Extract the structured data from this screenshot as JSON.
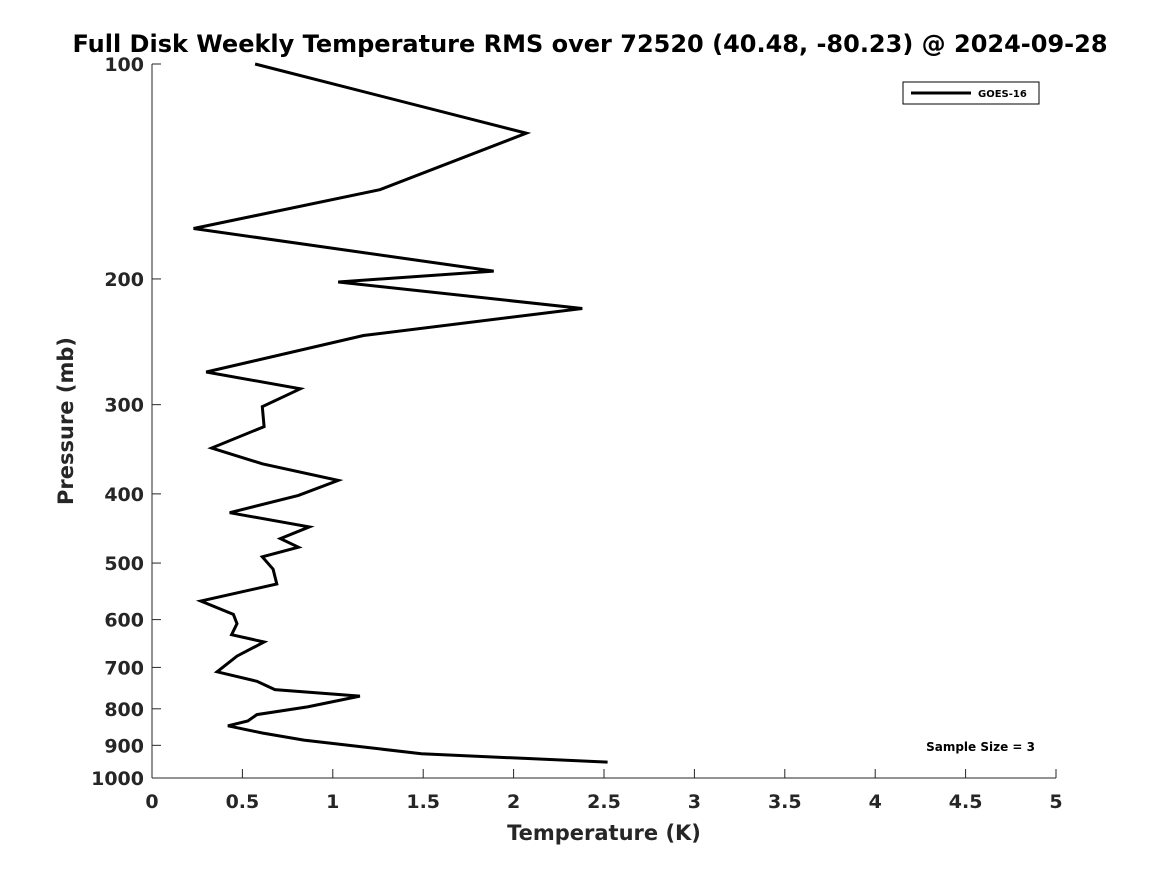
{
  "chart_data": {
    "type": "line",
    "title": "Full Disk Weekly Temperature RMS over 72520 (40.48, -80.23) @ 2024-09-28",
    "xlabel": "Temperature (K)",
    "ylabel": "Pressure (mb)",
    "xlim": [
      0,
      5
    ],
    "ylim": [
      100,
      1000
    ],
    "y_scale": "log",
    "y_reversed": true,
    "grid": false,
    "legend_position": "top-right",
    "x_ticks": [
      "0",
      "0.5",
      "1",
      "1.5",
      "2",
      "2.5",
      "3",
      "3.5",
      "4",
      "4.5",
      "5"
    ],
    "y_ticks": [
      "100",
      "200",
      "300",
      "400",
      "500",
      "600",
      "700",
      "800",
      "900",
      "1000"
    ],
    "series": [
      {
        "name": "GOES-16",
        "color": "#000000",
        "points": [
          [
            0.57,
            100
          ],
          [
            2.07,
            125
          ],
          [
            1.26,
            150
          ],
          [
            0.23,
            170
          ],
          [
            1.89,
            195
          ],
          [
            1.03,
            202
          ],
          [
            2.38,
            220
          ],
          [
            1.17,
            240
          ],
          [
            0.3,
            270
          ],
          [
            0.82,
            285
          ],
          [
            0.61,
            302
          ],
          [
            0.62,
            322
          ],
          [
            0.33,
            345
          ],
          [
            0.61,
            363
          ],
          [
            1.03,
            383
          ],
          [
            0.81,
            402
          ],
          [
            0.43,
            425
          ],
          [
            0.87,
            445
          ],
          [
            0.71,
            462
          ],
          [
            0.81,
            475
          ],
          [
            0.61,
            490
          ],
          [
            0.67,
            510
          ],
          [
            0.69,
            535
          ],
          [
            0.27,
            565
          ],
          [
            0.45,
            590
          ],
          [
            0.47,
            608
          ],
          [
            0.44,
            630
          ],
          [
            0.62,
            645
          ],
          [
            0.47,
            675
          ],
          [
            0.36,
            710
          ],
          [
            0.58,
            732
          ],
          [
            0.68,
            752
          ],
          [
            1.15,
            768
          ],
          [
            0.86,
            795
          ],
          [
            0.58,
            815
          ],
          [
            0.53,
            832
          ],
          [
            0.42,
            845
          ],
          [
            0.61,
            865
          ],
          [
            0.84,
            885
          ],
          [
            1.17,
            905
          ],
          [
            1.49,
            925
          ],
          [
            2.11,
            940
          ],
          [
            2.52,
            950
          ]
        ]
      }
    ],
    "annotation": "Sample Size = 3"
  }
}
